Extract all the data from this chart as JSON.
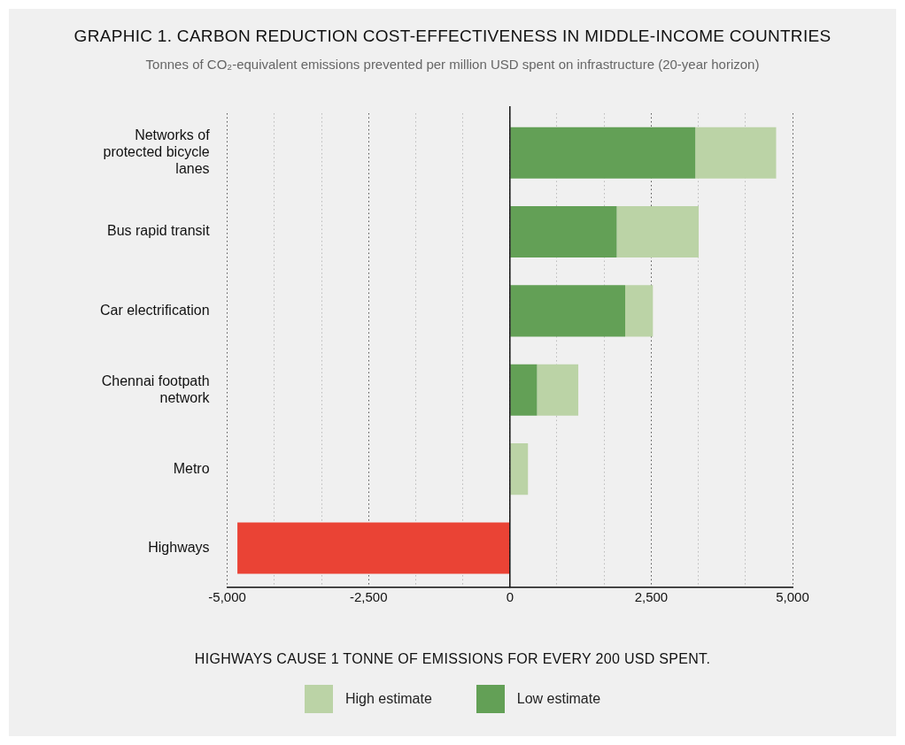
{
  "chart_data": {
    "type": "bar",
    "orientation": "horizontal",
    "stacked": true,
    "title": "GRAPHIC 1. CARBON REDUCTION COST-EFFECTIVENESS IN MIDDLE-INCOME COUNTRIES",
    "subtitle": "Tonnes of CO₂-equivalent emissions prevented per million USD spent on infrastructure (20-year horizon)",
    "categories": [
      "Networks of protected bicycle lanes",
      "Bus rapid transit",
      "Car electrification",
      "Chennai footpath network",
      "Metro",
      "Highways"
    ],
    "series": [
      {
        "name": "Low estimate",
        "color": "#63a056",
        "colors": [
          "#63a056",
          "#63a056",
          "#63a056",
          "#63a056",
          "#63a056",
          "#ea4335"
        ],
        "values": [
          3280,
          1890,
          2040,
          480,
          null,
          -4820
        ]
      },
      {
        "name": "High estimate",
        "color": "#bbd3a6",
        "values": [
          1430,
          1450,
          490,
          730,
          320,
          null
        ]
      }
    ],
    "xlim": [
      -5000,
      5000
    ],
    "xticks": [
      {
        "value": -5000,
        "label": "-5,000"
      },
      {
        "value": -4167,
        "label": null
      },
      {
        "value": -3333,
        "label": null
      },
      {
        "value": -2500,
        "label": "-2,500"
      },
      {
        "value": -1667,
        "label": null
      },
      {
        "value": -833,
        "label": null
      },
      0,
      {
        "value": 833,
        "label": null
      },
      {
        "value": 1667,
        "label": null
      },
      {
        "value": 2500,
        "label": "2,500"
      },
      {
        "value": 3333,
        "label": null
      },
      {
        "value": 4167,
        "label": null
      },
      {
        "value": 5000,
        "label": "5,000"
      }
    ],
    "grid": "x",
    "legend": "bottom",
    "annotations": [
      "HIGHWAYS CAUSE 1 TONNE OF EMISSIONS FOR EVERY 200 USD SPENT."
    ]
  }
}
